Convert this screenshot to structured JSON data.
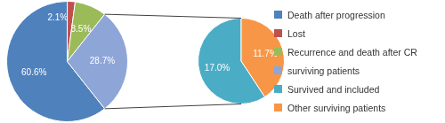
{
  "chart_data": [
    {
      "type": "pie",
      "categories": [
        "Death after progression",
        "Lost",
        "Recurrence and death after CR",
        "surviving patients"
      ],
      "values": [
        60.6,
        2.1,
        8.5,
        28.7
      ],
      "value_labels": [
        "60.6%",
        "2.1%",
        "8.5%",
        "28.7%"
      ],
      "colors": [
        "#4f81bd",
        "#c0504d",
        "#9bbb59",
        "#8ea5d8"
      ],
      "data_labels": true,
      "legend": "right"
    },
    {
      "type": "pie",
      "categories": [
        "Survived and included",
        "Other surviving patients"
      ],
      "values": [
        17.0,
        11.7
      ],
      "value_labels": [
        "17.0%",
        "11.7%"
      ],
      "colors": [
        "#4bacc6",
        "#f79646"
      ],
      "data_labels": true,
      "legend": "right"
    }
  ]
}
